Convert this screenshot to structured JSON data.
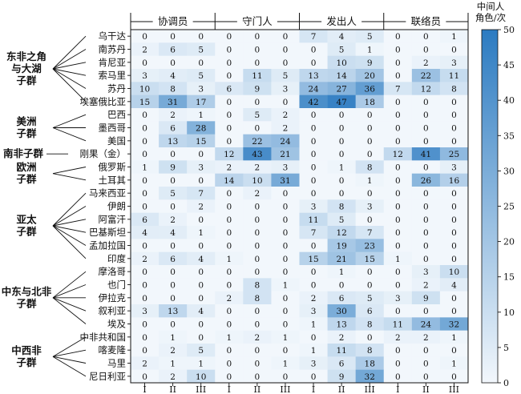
{
  "chart_data": {
    "type": "heatmap",
    "title": "",
    "roles": [
      "协调员",
      "守门人",
      "发出人",
      "联络员"
    ],
    "tiers": [
      "I",
      "II",
      "III"
    ],
    "groups": [
      {
        "label": "东非之角\n与大湖\n子群",
        "countries": [
          "乌干达",
          "南苏丹",
          "肯尼亚",
          "索马里",
          "苏丹",
          "埃塞俄比亚"
        ]
      },
      {
        "label": "美洲\n子群",
        "countries": [
          "巴西",
          "墨西哥",
          "美国"
        ]
      },
      {
        "label": "南非子群",
        "countries": [
          "刚果（金）"
        ]
      },
      {
        "label": "欧洲\n子群",
        "countries": [
          "俄罗斯",
          "土耳其"
        ]
      },
      {
        "label": "亚太\n子群",
        "countries": [
          "马来西亚",
          "伊朗",
          "阿富汗",
          "巴基斯坦",
          "孟加拉国",
          "印度"
        ]
      },
      {
        "label": "中东与北非\n子群",
        "countries": [
          "摩洛哥",
          "也门",
          "伊拉克",
          "叙利亚",
          "埃及"
        ]
      },
      {
        "label": "中西非\n子群",
        "countries": [
          "中非共和国",
          "喀麦隆",
          "马里",
          "尼日利亚"
        ]
      }
    ],
    "values": [
      [
        0,
        0,
        0,
        0,
        0,
        0,
        7,
        4,
        5,
        0,
        0,
        1
      ],
      [
        2,
        6,
        5,
        0,
        0,
        0,
        0,
        5,
        1,
        0,
        0,
        0
      ],
      [
        0,
        0,
        0,
        0,
        0,
        0,
        0,
        10,
        9,
        0,
        2,
        3
      ],
      [
        3,
        4,
        5,
        0,
        11,
        5,
        13,
        14,
        20,
        0,
        22,
        11
      ],
      [
        10,
        8,
        3,
        6,
        9,
        3,
        24,
        27,
        36,
        7,
        12,
        8
      ],
      [
        15,
        31,
        17,
        0,
        0,
        0,
        42,
        47,
        18,
        0,
        0,
        0
      ],
      [
        0,
        2,
        1,
        0,
        5,
        2,
        0,
        0,
        0,
        0,
        0,
        0
      ],
      [
        0,
        6,
        28,
        0,
        0,
        2,
        0,
        0,
        0,
        0,
        0,
        0
      ],
      [
        0,
        13,
        15,
        0,
        22,
        24,
        0,
        0,
        0,
        0,
        0,
        0
      ],
      [
        0,
        0,
        0,
        12,
        43,
        21,
        0,
        0,
        0,
        12,
        41,
        25
      ],
      [
        1,
        9,
        3,
        2,
        2,
        3,
        0,
        1,
        8,
        0,
        0,
        3
      ],
      [
        0,
        0,
        0,
        14,
        10,
        31,
        0,
        0,
        1,
        0,
        26,
        16
      ],
      [
        0,
        5,
        7,
        0,
        2,
        0,
        0,
        0,
        0,
        0,
        0,
        0
      ],
      [
        0,
        0,
        2,
        0,
        0,
        0,
        3,
        8,
        3,
        0,
        0,
        0
      ],
      [
        6,
        2,
        0,
        0,
        0,
        0,
        11,
        5,
        0,
        0,
        0,
        0
      ],
      [
        4,
        4,
        1,
        0,
        0,
        0,
        7,
        12,
        7,
        0,
        0,
        0
      ],
      [
        0,
        0,
        0,
        0,
        0,
        0,
        0,
        19,
        23,
        0,
        0,
        0
      ],
      [
        2,
        6,
        4,
        1,
        0,
        0,
        15,
        21,
        15,
        1,
        0,
        0
      ],
      [
        0,
        0,
        0,
        0,
        0,
        0,
        0,
        1,
        0,
        0,
        3,
        10
      ],
      [
        0,
        0,
        0,
        0,
        8,
        1,
        0,
        0,
        0,
        0,
        2,
        4
      ],
      [
        0,
        0,
        0,
        2,
        8,
        0,
        2,
        6,
        5,
        3,
        9,
        0
      ],
      [
        3,
        13,
        4,
        0,
        0,
        0,
        3,
        30,
        6,
        0,
        0,
        0
      ],
      [
        0,
        0,
        0,
        0,
        0,
        0,
        1,
        13,
        8,
        11,
        24,
        32
      ],
      [
        0,
        1,
        0,
        1,
        2,
        1,
        0,
        2,
        0,
        2,
        2,
        1
      ],
      [
        0,
        2,
        5,
        0,
        0,
        0,
        1,
        11,
        8,
        0,
        0,
        0
      ],
      [
        2,
        1,
        1,
        0,
        0,
        1,
        3,
        6,
        18,
        0,
        0,
        1
      ],
      [
        0,
        2,
        10,
        0,
        0,
        0,
        0,
        9,
        32,
        0,
        0,
        0
      ]
    ],
    "colorbar": {
      "title": "中间人\n角色/次",
      "vmin": 0,
      "vmax": 50,
      "ticks": [
        0,
        5,
        10,
        15,
        20,
        25,
        30,
        35,
        40,
        45,
        50
      ],
      "color_low": "#f2f7fc",
      "color_high": "#2c7bc1"
    }
  }
}
